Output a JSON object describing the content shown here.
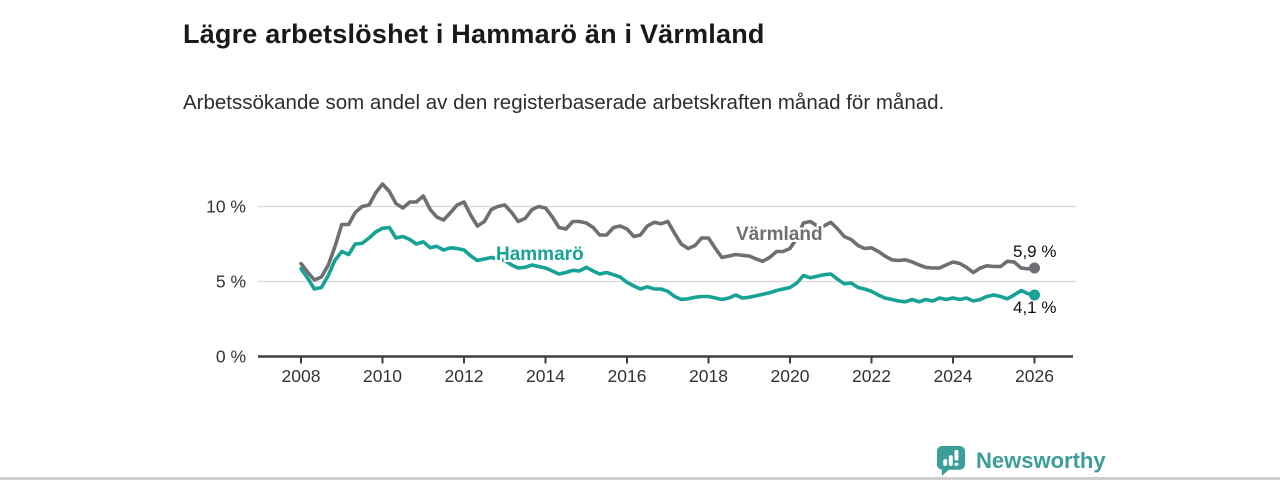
{
  "header": {
    "title": "Lägre arbetslöshet i Hammarö än i Värmland",
    "subtitle": "Arbetssökande som andel av den registerbaserade arbetskraften månad för månad."
  },
  "chart_data": {
    "type": "line",
    "title": "Lägre arbetslöshet i Hammarö än i Värmland",
    "subtitle": "Arbetssökande som andel av den registerbaserade arbetskraften månad för månad.",
    "unit": "%",
    "xlim": [
      2006.9,
      2026.95
    ],
    "ylim": [
      0,
      12.5
    ],
    "grid": "horizontal",
    "legend_position": "inline-labels",
    "y_ticks": [
      {
        "value": 0,
        "label": "0 %"
      },
      {
        "value": 5,
        "label": "5 %"
      },
      {
        "value": 10,
        "label": "10 %"
      }
    ],
    "x_ticks": [
      {
        "value": 2008,
        "label": "2008"
      },
      {
        "value": 2010,
        "label": "2010"
      },
      {
        "value": 2012,
        "label": "2012"
      },
      {
        "value": 2014,
        "label": "2014"
      },
      {
        "value": 2016,
        "label": "2016"
      },
      {
        "value": 2018,
        "label": "2018"
      },
      {
        "value": 2020,
        "label": "2020"
      },
      {
        "value": 2022,
        "label": "2022"
      },
      {
        "value": 2024,
        "label": "2024"
      },
      {
        "value": 2026,
        "label": "2026"
      }
    ],
    "series": [
      {
        "name": "Värmland",
        "color": "#6f6f73",
        "end_label": "5,9 %",
        "end_value": 5.9,
        "points": [
          [
            2008.0,
            6.2
          ],
          [
            2008.17,
            5.6
          ],
          [
            2008.33,
            5.1
          ],
          [
            2008.5,
            5.3
          ],
          [
            2008.67,
            6.1
          ],
          [
            2008.83,
            7.3
          ],
          [
            2009.0,
            8.8
          ],
          [
            2009.17,
            8.8
          ],
          [
            2009.33,
            9.6
          ],
          [
            2009.5,
            10.0
          ],
          [
            2009.67,
            10.1
          ],
          [
            2009.83,
            10.9
          ],
          [
            2010.0,
            11.5
          ],
          [
            2010.17,
            11.0
          ],
          [
            2010.33,
            10.2
          ],
          [
            2010.5,
            9.9
          ],
          [
            2010.67,
            10.3
          ],
          [
            2010.83,
            10.3
          ],
          [
            2011.0,
            10.7
          ],
          [
            2011.17,
            9.8
          ],
          [
            2011.33,
            9.3
          ],
          [
            2011.5,
            9.1
          ],
          [
            2011.67,
            9.6
          ],
          [
            2011.83,
            10.1
          ],
          [
            2012.0,
            10.3
          ],
          [
            2012.17,
            9.4
          ],
          [
            2012.33,
            8.7
          ],
          [
            2012.5,
            9.0
          ],
          [
            2012.67,
            9.8
          ],
          [
            2012.83,
            10.0
          ],
          [
            2013.0,
            10.1
          ],
          [
            2013.17,
            9.6
          ],
          [
            2013.33,
            9.0
          ],
          [
            2013.5,
            9.2
          ],
          [
            2013.67,
            9.8
          ],
          [
            2013.83,
            10.0
          ],
          [
            2014.0,
            9.9
          ],
          [
            2014.17,
            9.3
          ],
          [
            2014.33,
            8.6
          ],
          [
            2014.5,
            8.5
          ],
          [
            2014.67,
            9.0
          ],
          [
            2014.83,
            9.0
          ],
          [
            2015.0,
            8.9
          ],
          [
            2015.17,
            8.6
          ],
          [
            2015.33,
            8.1
          ],
          [
            2015.5,
            8.1
          ],
          [
            2015.67,
            8.6
          ],
          [
            2015.83,
            8.7
          ],
          [
            2016.0,
            8.5
          ],
          [
            2016.17,
            8.0
          ],
          [
            2016.33,
            8.1
          ],
          [
            2016.5,
            8.7
          ],
          [
            2016.67,
            8.95
          ],
          [
            2016.83,
            8.85
          ],
          [
            2017.0,
            9.0
          ],
          [
            2017.17,
            8.2
          ],
          [
            2017.33,
            7.5
          ],
          [
            2017.5,
            7.2
          ],
          [
            2017.67,
            7.4
          ],
          [
            2017.83,
            7.9
          ],
          [
            2018.0,
            7.9
          ],
          [
            2018.17,
            7.2
          ],
          [
            2018.33,
            6.6
          ],
          [
            2018.5,
            6.7
          ],
          [
            2018.67,
            6.8
          ],
          [
            2018.83,
            6.75
          ],
          [
            2019.0,
            6.7
          ],
          [
            2019.17,
            6.5
          ],
          [
            2019.33,
            6.35
          ],
          [
            2019.5,
            6.6
          ],
          [
            2019.67,
            7.0
          ],
          [
            2019.83,
            7.0
          ],
          [
            2020.0,
            7.2
          ],
          [
            2020.17,
            7.9
          ],
          [
            2020.33,
            8.9
          ],
          [
            2020.5,
            9.0
          ],
          [
            2020.67,
            8.7
          ],
          [
            2020.83,
            8.7
          ],
          [
            2021.0,
            8.95
          ],
          [
            2021.17,
            8.5
          ],
          [
            2021.33,
            8.0
          ],
          [
            2021.5,
            7.8
          ],
          [
            2021.67,
            7.4
          ],
          [
            2021.83,
            7.2
          ],
          [
            2022.0,
            7.25
          ],
          [
            2022.17,
            7.0
          ],
          [
            2022.33,
            6.7
          ],
          [
            2022.5,
            6.45
          ],
          [
            2022.67,
            6.4
          ],
          [
            2022.83,
            6.45
          ],
          [
            2023.0,
            6.3
          ],
          [
            2023.17,
            6.1
          ],
          [
            2023.33,
            5.95
          ],
          [
            2023.5,
            5.9
          ],
          [
            2023.67,
            5.9
          ],
          [
            2023.83,
            6.1
          ],
          [
            2024.0,
            6.3
          ],
          [
            2024.17,
            6.2
          ],
          [
            2024.33,
            5.95
          ],
          [
            2024.5,
            5.6
          ],
          [
            2024.67,
            5.9
          ],
          [
            2024.83,
            6.05
          ],
          [
            2025.0,
            6.0
          ],
          [
            2025.17,
            6.0
          ],
          [
            2025.33,
            6.35
          ],
          [
            2025.5,
            6.3
          ],
          [
            2025.67,
            5.9
          ],
          [
            2025.83,
            5.85
          ],
          [
            2026.0,
            5.9
          ]
        ]
      },
      {
        "name": "Hammarö",
        "color": "#17a296",
        "end_label": "4,1 %",
        "end_value": 4.1,
        "points": [
          [
            2008.0,
            5.85
          ],
          [
            2008.17,
            5.2
          ],
          [
            2008.33,
            4.5
          ],
          [
            2008.5,
            4.6
          ],
          [
            2008.67,
            5.4
          ],
          [
            2008.83,
            6.4
          ],
          [
            2009.0,
            7.0
          ],
          [
            2009.17,
            6.8
          ],
          [
            2009.33,
            7.5
          ],
          [
            2009.5,
            7.55
          ],
          [
            2009.67,
            7.9
          ],
          [
            2009.83,
            8.3
          ],
          [
            2010.0,
            8.55
          ],
          [
            2010.17,
            8.6
          ],
          [
            2010.33,
            7.9
          ],
          [
            2010.5,
            8.0
          ],
          [
            2010.67,
            7.8
          ],
          [
            2010.83,
            7.5
          ],
          [
            2011.0,
            7.65
          ],
          [
            2011.17,
            7.25
          ],
          [
            2011.33,
            7.35
          ],
          [
            2011.5,
            7.1
          ],
          [
            2011.67,
            7.25
          ],
          [
            2011.83,
            7.2
          ],
          [
            2012.0,
            7.1
          ],
          [
            2012.17,
            6.7
          ],
          [
            2012.33,
            6.4
          ],
          [
            2012.5,
            6.5
          ],
          [
            2012.67,
            6.6
          ],
          [
            2012.83,
            6.5
          ],
          [
            2013.0,
            6.4
          ],
          [
            2013.17,
            6.1
          ],
          [
            2013.33,
            5.9
          ],
          [
            2013.5,
            5.95
          ],
          [
            2013.67,
            6.1
          ],
          [
            2013.83,
            6.0
          ],
          [
            2014.0,
            5.9
          ],
          [
            2014.17,
            5.7
          ],
          [
            2014.33,
            5.5
          ],
          [
            2014.5,
            5.6
          ],
          [
            2014.67,
            5.75
          ],
          [
            2014.83,
            5.7
          ],
          [
            2015.0,
            5.95
          ],
          [
            2015.17,
            5.7
          ],
          [
            2015.33,
            5.5
          ],
          [
            2015.5,
            5.6
          ],
          [
            2015.67,
            5.45
          ],
          [
            2015.83,
            5.3
          ],
          [
            2016.0,
            4.95
          ],
          [
            2016.17,
            4.7
          ],
          [
            2016.33,
            4.5
          ],
          [
            2016.5,
            4.65
          ],
          [
            2016.67,
            4.5
          ],
          [
            2016.83,
            4.5
          ],
          [
            2017.0,
            4.35
          ],
          [
            2017.17,
            4.0
          ],
          [
            2017.33,
            3.8
          ],
          [
            2017.5,
            3.85
          ],
          [
            2017.67,
            3.95
          ],
          [
            2017.83,
            4.0
          ],
          [
            2018.0,
            4.0
          ],
          [
            2018.17,
            3.9
          ],
          [
            2018.33,
            3.8
          ],
          [
            2018.5,
            3.9
          ],
          [
            2018.67,
            4.1
          ],
          [
            2018.83,
            3.9
          ],
          [
            2019.0,
            3.95
          ],
          [
            2019.17,
            4.05
          ],
          [
            2019.33,
            4.15
          ],
          [
            2019.5,
            4.25
          ],
          [
            2019.67,
            4.4
          ],
          [
            2019.83,
            4.5
          ],
          [
            2020.0,
            4.6
          ],
          [
            2020.17,
            4.9
          ],
          [
            2020.33,
            5.4
          ],
          [
            2020.5,
            5.25
          ],
          [
            2020.67,
            5.35
          ],
          [
            2020.83,
            5.45
          ],
          [
            2021.0,
            5.5
          ],
          [
            2021.17,
            5.15
          ],
          [
            2021.33,
            4.85
          ],
          [
            2021.5,
            4.9
          ],
          [
            2021.67,
            4.6
          ],
          [
            2021.83,
            4.5
          ],
          [
            2022.0,
            4.35
          ],
          [
            2022.17,
            4.1
          ],
          [
            2022.33,
            3.9
          ],
          [
            2022.5,
            3.8
          ],
          [
            2022.67,
            3.7
          ],
          [
            2022.83,
            3.65
          ],
          [
            2023.0,
            3.8
          ],
          [
            2023.17,
            3.65
          ],
          [
            2023.33,
            3.8
          ],
          [
            2023.5,
            3.7
          ],
          [
            2023.67,
            3.9
          ],
          [
            2023.83,
            3.8
          ],
          [
            2024.0,
            3.9
          ],
          [
            2024.17,
            3.8
          ],
          [
            2024.33,
            3.9
          ],
          [
            2024.5,
            3.7
          ],
          [
            2024.67,
            3.8
          ],
          [
            2024.83,
            4.0
          ],
          [
            2025.0,
            4.1
          ],
          [
            2025.17,
            4.0
          ],
          [
            2025.33,
            3.85
          ],
          [
            2025.5,
            4.1
          ],
          [
            2025.67,
            4.4
          ],
          [
            2025.83,
            4.2
          ],
          [
            2026.0,
            4.1
          ]
        ]
      }
    ]
  },
  "footer": {
    "brand": "Newsworthy"
  },
  "colors": {
    "accent_teal": "#17a296",
    "line_gray": "#6f6f73",
    "brand_teal": "#3d9e99",
    "grid": "#dadada",
    "axis": "#3f3f3f"
  }
}
